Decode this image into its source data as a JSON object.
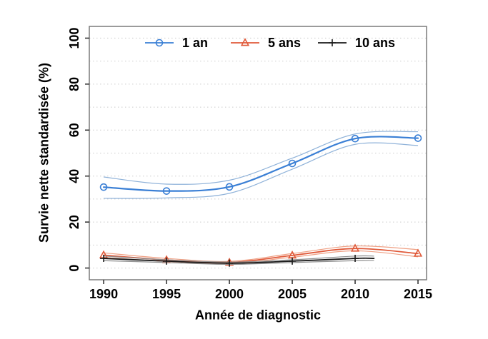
{
  "chart_data": {
    "type": "line",
    "title": "",
    "xlabel": "Année de diagnostic",
    "ylabel": "Survie nette standardisée (%)",
    "xticks": [
      1990,
      1995,
      2000,
      2005,
      2010,
      2015
    ],
    "yticks": [
      0,
      20,
      40,
      60,
      80,
      100
    ],
    "grid_y_step": 10,
    "grid": "horizontal-dotted",
    "xlim": [
      1988.86,
      2015.68
    ],
    "ylim": [
      -5.1,
      105.1
    ],
    "legend_position": "top-inside-horizontal",
    "colors": {
      "background": "#ffffff",
      "axis_box": "#7a7a7a",
      "tick": "#2b2b2b",
      "grid": "#cbcbcb",
      "text": "#000000"
    },
    "series": [
      {
        "name": "1 an",
        "marker": "circle",
        "color": "#3a7fd5",
        "ci_color": "#8fb2d9",
        "x": [
          1990,
          1995,
          2000,
          2005,
          2010,
          2015
        ],
        "y": [
          35.2,
          33.5,
          35.3,
          45.5,
          56.3,
          56.5
        ],
        "upper": [
          39.6,
          36.5,
          38.2,
          47.8,
          58.3,
          59.3
        ],
        "lower": [
          30.3,
          30.5,
          32.5,
          43.0,
          53.8,
          53.3
        ]
      },
      {
        "name": "5 ans",
        "marker": "triangle",
        "color": "#e05a3a",
        "ci_color": "#efa084",
        "x": [
          1990,
          1995,
          2000,
          2005,
          2010,
          2015
        ],
        "y": [
          5.6,
          3.5,
          2.4,
          5.5,
          8.5,
          6.3
        ],
        "upper": [
          6.6,
          4.2,
          2.9,
          6.3,
          9.6,
          8.0
        ],
        "lower": [
          4.6,
          2.9,
          2.0,
          4.7,
          7.5,
          4.9
        ]
      },
      {
        "name": "10 ans",
        "marker": "plus",
        "color": "#1a1a1a",
        "ci_color": "#8f8f8f",
        "x": [
          1990,
          1995,
          2000,
          2005,
          2010,
          2011.5
        ],
        "y": [
          4.2,
          3.0,
          2.1,
          3.0,
          4.2,
          4.2
        ],
        "upper": [
          5.2,
          3.6,
          2.6,
          3.6,
          5.2,
          5.2
        ],
        "lower": [
          3.2,
          2.4,
          1.6,
          2.4,
          3.2,
          3.3
        ]
      }
    ]
  }
}
